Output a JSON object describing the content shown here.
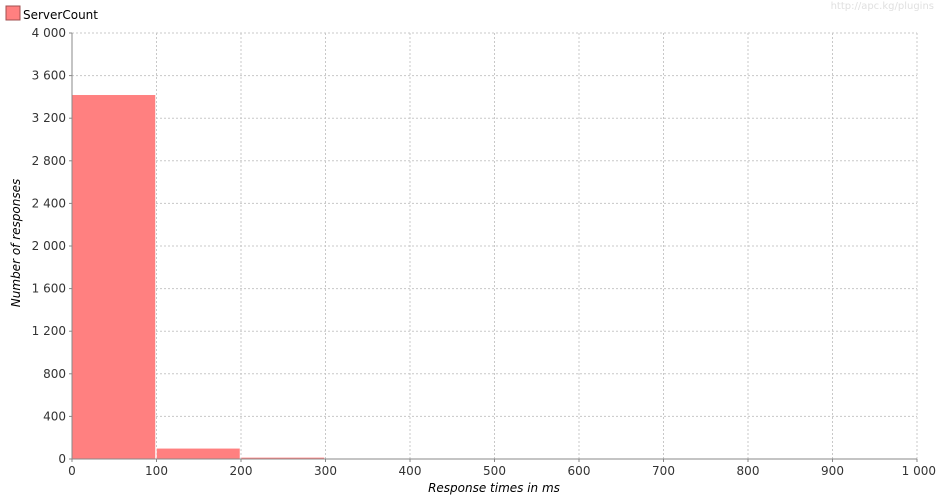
{
  "watermark": "http://apc.kg/plugins",
  "chart_data": {
    "type": "bar",
    "bins": [
      {
        "x0": 0,
        "x1": 100,
        "value": 3420
      },
      {
        "x0": 100,
        "x1": 200,
        "value": 100
      },
      {
        "x0": 200,
        "x1": 300,
        "value": 15
      }
    ],
    "series": [
      {
        "name": "ServerCount",
        "color": "#ff8080"
      }
    ],
    "xlabel": "Response times in ms",
    "ylabel": "Number of responses",
    "xlim": [
      0,
      1000
    ],
    "ylim": [
      0,
      4000
    ],
    "x_ticks": [
      0,
      100,
      200,
      300,
      400,
      500,
      600,
      700,
      800,
      900,
      1000
    ],
    "x_tick_labels": [
      "0",
      "100",
      "200",
      "300",
      "400",
      "500",
      "600",
      "700",
      "800",
      "900",
      "1 000"
    ],
    "y_ticks": [
      0,
      400,
      800,
      1200,
      1600,
      2000,
      2400,
      2800,
      3200,
      3600,
      4000
    ],
    "y_tick_labels": [
      "0",
      "400",
      "800",
      "1 200",
      "1 600",
      "2 000",
      "2 400",
      "2 800",
      "3 200",
      "3 600",
      "4 000"
    ],
    "grid": true,
    "legend_position": "top-left"
  }
}
